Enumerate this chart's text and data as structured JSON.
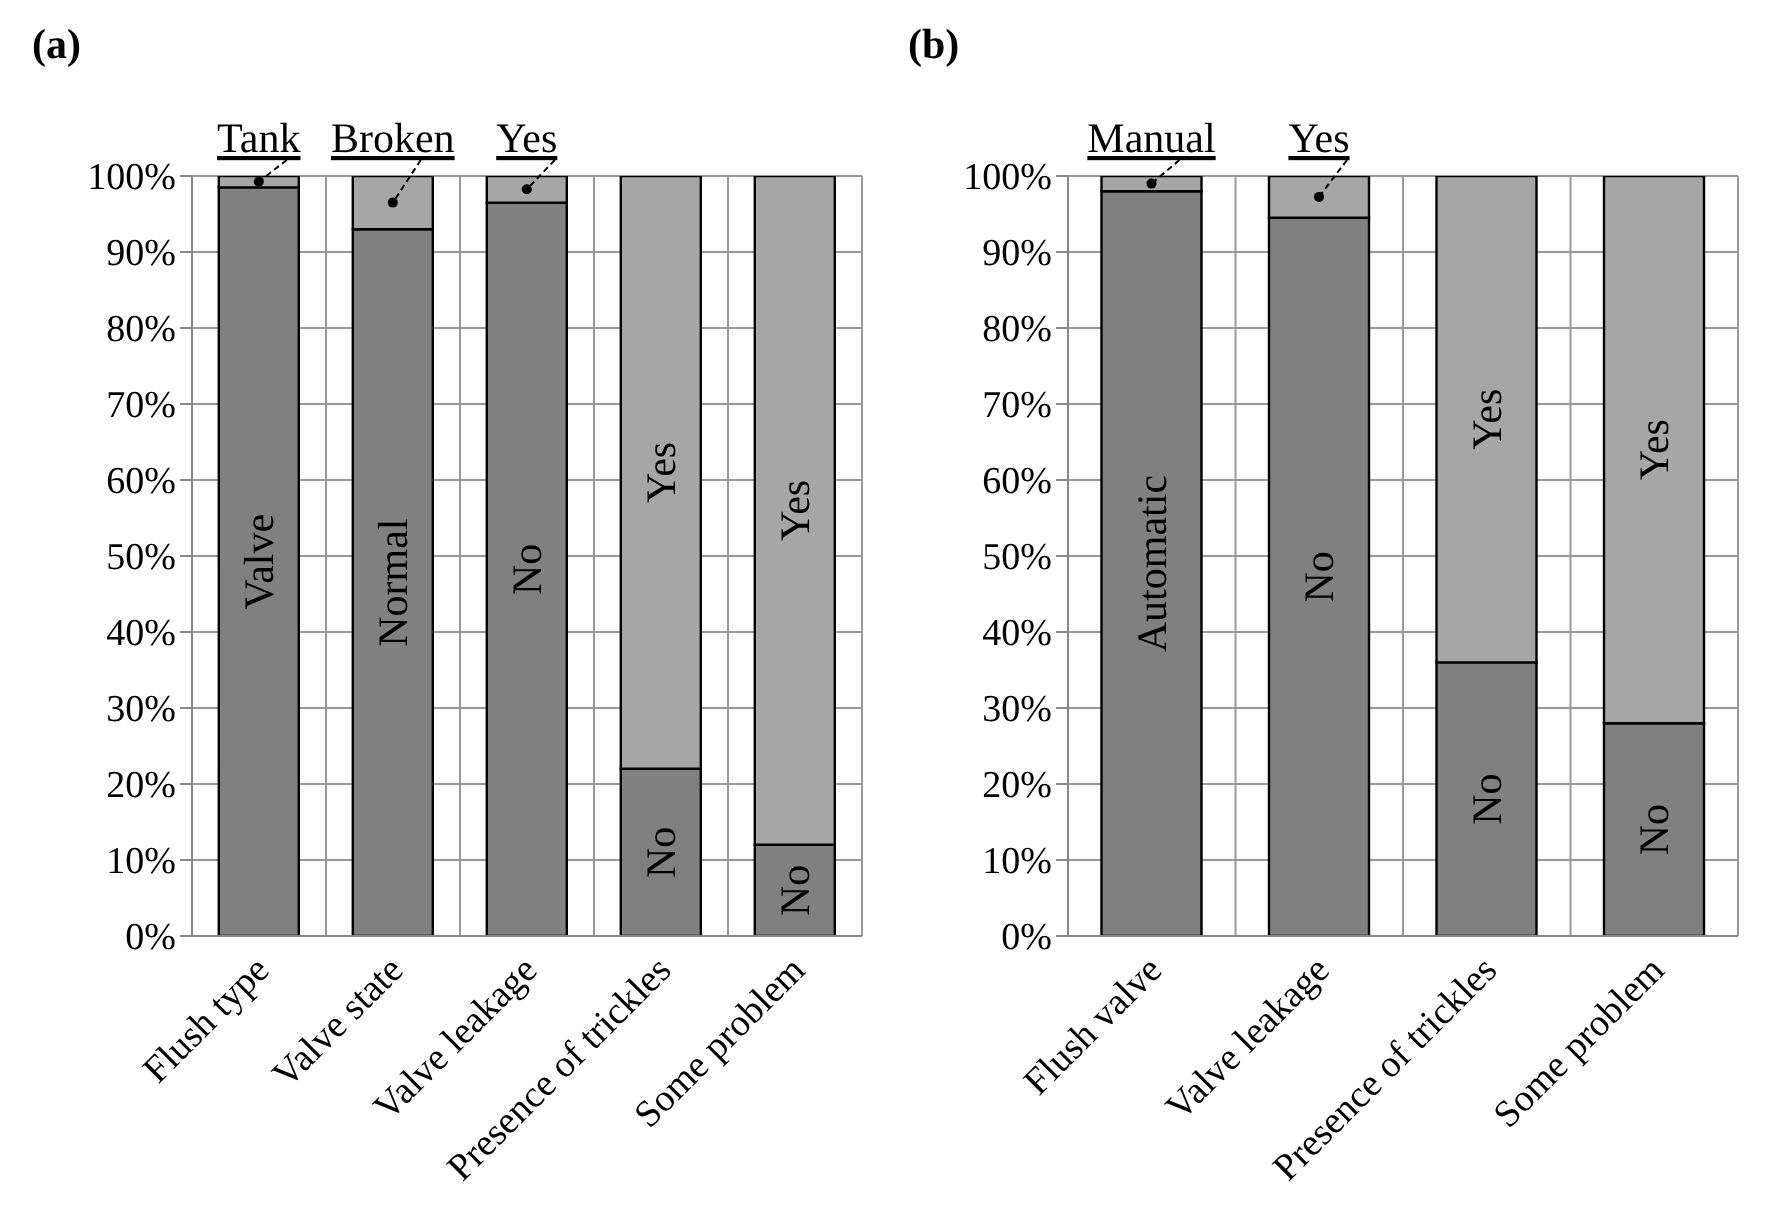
{
  "chart_data": [
    {
      "type": "bar",
      "title": "(a)",
      "stacked": true,
      "grid": true,
      "categories": [
        "Flush type",
        "Valve state",
        "Valve leakage",
        "Presence of trickles",
        "Some problem"
      ],
      "series": [
        {
          "color": "#808080",
          "values": [
            98.5,
            93,
            96.5,
            22,
            12
          ],
          "value_labels": [
            "Valve",
            "Normal",
            "No",
            "No",
            "No"
          ]
        },
        {
          "color": "#a6a6a6",
          "values": [
            1.5,
            7,
            3.5,
            78,
            88
          ],
          "value_labels": [
            "Tank",
            "Broken",
            "Yes",
            "Yes",
            "Yes"
          ]
        }
      ],
      "ylim": [
        0,
        100
      ],
      "yticks": [
        {
          "value": 0,
          "label": "0%"
        },
        {
          "value": 10,
          "label": "10%"
        },
        {
          "value": 20,
          "label": "20%"
        },
        {
          "value": 30,
          "label": "30%"
        },
        {
          "value": 40,
          "label": "40%"
        },
        {
          "value": 50,
          "label": "50%"
        },
        {
          "value": 60,
          "label": "60%"
        },
        {
          "value": 70,
          "label": "70%"
        },
        {
          "value": 80,
          "label": "80%"
        },
        {
          "value": 90,
          "label": "90%"
        },
        {
          "value": 100,
          "label": "100%"
        }
      ]
    },
    {
      "type": "bar",
      "title": "(b)",
      "stacked": true,
      "grid": true,
      "categories": [
        "Flush valve",
        "Valve leakage",
        "Presence of trickles",
        "Some problem"
      ],
      "series": [
        {
          "color": "#808080",
          "values": [
            98,
            94.5,
            36,
            28
          ],
          "value_labels": [
            "Automatic",
            "No",
            "No",
            "No"
          ]
        },
        {
          "color": "#a6a6a6",
          "values": [
            2,
            5.5,
            64,
            72
          ],
          "value_labels": [
            "Manual",
            "Yes",
            "Yes",
            "Yes"
          ]
        }
      ],
      "ylim": [
        0,
        100
      ],
      "yticks": [
        {
          "value": 0,
          "label": "0%"
        },
        {
          "value": 10,
          "label": "10%"
        },
        {
          "value": 20,
          "label": "20%"
        },
        {
          "value": 30,
          "label": "30%"
        },
        {
          "value": 40,
          "label": "40%"
        },
        {
          "value": 50,
          "label": "50%"
        },
        {
          "value": 60,
          "label": "60%"
        },
        {
          "value": 70,
          "label": "70%"
        },
        {
          "value": 80,
          "label": "80%"
        },
        {
          "value": 90,
          "label": "90%"
        },
        {
          "value": 100,
          "label": "100%"
        }
      ]
    }
  ]
}
